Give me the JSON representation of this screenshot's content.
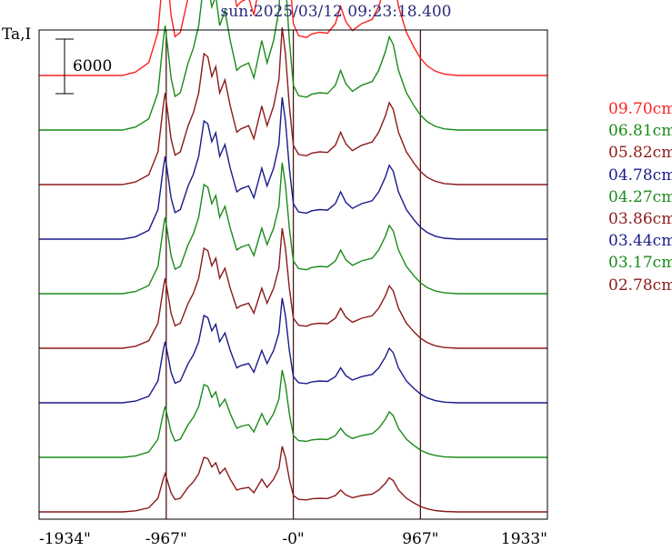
{
  "header": {
    "title": "sun:2025/03/12 09:23:18.400",
    "y_axis_label": "Ta,I"
  },
  "scale_bar": {
    "label": "6000",
    "value": 6000
  },
  "colors": {
    "frame": "#000000",
    "grid": "#4a1a1a",
    "title": "#2a2a7a"
  },
  "chart_data": {
    "type": "line",
    "title": "sun:2025/03/12 09:23:18.400",
    "ylabel": "Ta,I",
    "xlabel": "",
    "x_ticks": [
      {
        "value": -1934,
        "label": "-1934\""
      },
      {
        "value": -967,
        "label": "-967\""
      },
      {
        "value": 0,
        "label": "-0\""
      },
      {
        "value": 967,
        "label": "967\""
      },
      {
        "value": 1933,
        "label": "1933\""
      }
    ],
    "xlim": [
      -1934,
      1933
    ],
    "vertical_lines": [
      -967,
      0,
      967
    ],
    "scale_bar_value": 6000,
    "stack_spacing": 6000,
    "baseline": 0,
    "profile_template": [
      [
        -1934,
        0
      ],
      [
        -1300,
        0
      ],
      [
        -1200,
        400
      ],
      [
        -1100,
        1500
      ],
      [
        -1030,
        5000
      ],
      [
        -990,
        12000
      ],
      [
        -975,
        14000
      ],
      [
        -955,
        11000
      ],
      [
        -930,
        7000
      ],
      [
        -900,
        4500
      ],
      [
        -860,
        5000
      ],
      [
        -800,
        9000
      ],
      [
        -760,
        11000
      ],
      [
        -720,
        14000
      ],
      [
        -680,
        20000
      ],
      [
        -650,
        19500
      ],
      [
        -620,
        16500
      ],
      [
        -590,
        18000
      ],
      [
        -560,
        14000
      ],
      [
        -520,
        16000
      ],
      [
        -480,
        12000
      ],
      [
        -430,
        8000
      ],
      [
        -400,
        8500
      ],
      [
        -340,
        9000
      ],
      [
        -300,
        7000
      ],
      [
        -240,
        12000
      ],
      [
        -200,
        9000
      ],
      [
        -150,
        12000
      ],
      [
        -110,
        16000
      ],
      [
        -85,
        24000
      ],
      [
        -60,
        20000
      ],
      [
        -30,
        12000
      ],
      [
        0,
        6000
      ],
      [
        40,
        4600
      ],
      [
        100,
        4400
      ],
      [
        140,
        4800
      ],
      [
        200,
        5000
      ],
      [
        260,
        4900
      ],
      [
        320,
        6000
      ],
      [
        360,
        8000
      ],
      [
        400,
        6200
      ],
      [
        450,
        5200
      ],
      [
        520,
        6000
      ],
      [
        600,
        6500
      ],
      [
        650,
        8000
      ],
      [
        700,
        10500
      ],
      [
        730,
        12500
      ],
      [
        760,
        11500
      ],
      [
        800,
        8000
      ],
      [
        860,
        5000
      ],
      [
        920,
        3200
      ],
      [
        967,
        2000
      ],
      [
        1020,
        1100
      ],
      [
        1080,
        500
      ],
      [
        1150,
        150
      ],
      [
        1250,
        0
      ],
      [
        1933,
        0
      ]
    ],
    "series": [
      {
        "name": "09.70cm",
        "color": "#ff2020",
        "scale": 0.95
      },
      {
        "name": "06.81cm",
        "color": "#1a8a1a",
        "scale": 0.82
      },
      {
        "name": "05.82cm",
        "color": "#8b1a1a",
        "scale": 0.72
      },
      {
        "name": "04.78cm",
        "color": "#1a1a8b",
        "scale": 0.65
      },
      {
        "name": "04.27cm",
        "color": "#1a8a1a",
        "scale": 0.6
      },
      {
        "name": "03.86cm",
        "color": "#8b1a1a",
        "scale": 0.55
      },
      {
        "name": "03.44cm",
        "color": "#1a1a8b",
        "scale": 0.48
      },
      {
        "name": "03.17cm",
        "color": "#1a8a1a",
        "scale": 0.4
      },
      {
        "name": "02.78cm",
        "color": "#8b1a1a",
        "scale": 0.3
      }
    ]
  }
}
